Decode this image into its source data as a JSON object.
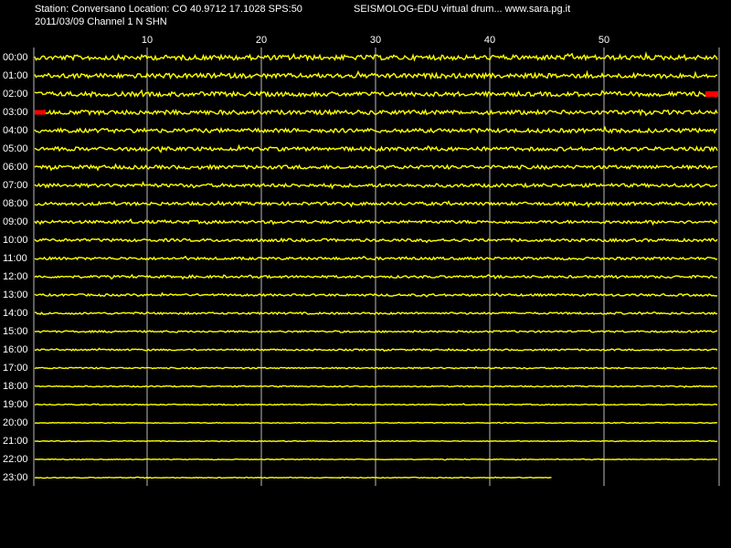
{
  "chart_data": {
    "type": "helicorder",
    "title": "Station: Conversano Location: CO 40.9712 17.1028 SPS:50",
    "subtitle": "2011/03/09  Channel 1 N SHN",
    "banner": "SEISMOLOG-EDU virtual drum... www.sara.pg.it",
    "categories": [
      "00:00",
      "01:00",
      "02:00",
      "03:00",
      "04:00",
      "05:00",
      "06:00",
      "07:00",
      "08:00",
      "09:00",
      "10:00",
      "11:00",
      "12:00",
      "13:00",
      "14:00",
      "15:00",
      "16:00",
      "17:00",
      "18:00",
      "19:00",
      "20:00",
      "21:00",
      "22:00",
      "23:00"
    ],
    "xlim": [
      0,
      60
    ],
    "xticks": [
      10,
      20,
      30,
      40,
      50
    ],
    "last_sample_minute": 45.5,
    "color": "#ffff00",
    "grid": true
  }
}
